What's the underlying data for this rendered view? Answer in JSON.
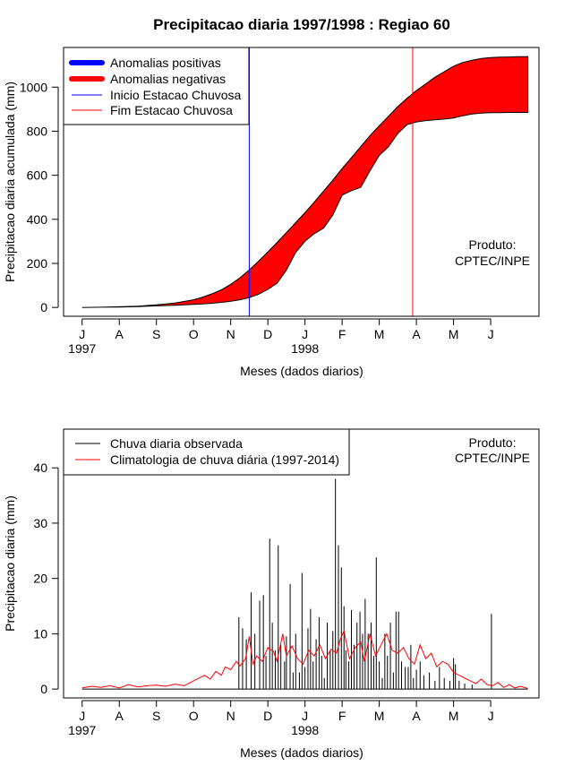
{
  "chart_data": [
    {
      "type": "area",
      "title": "Precipitacao diaria 1997/1998 : Regiao 60",
      "xlabel": "Meses (dados diarios)",
      "ylabel": "Precipitacao diaria acumulada (mm)",
      "ylim": [
        -40,
        1180
      ],
      "yticks": [
        0,
        200,
        400,
        600,
        800,
        1000
      ],
      "xlim": [
        -0.5,
        12.3
      ],
      "month_ticks": [
        "J",
        "A",
        "S",
        "O",
        "N",
        "D",
        "J",
        "F",
        "M",
        "A",
        "M",
        "J"
      ],
      "year_labels": [
        {
          "label": "1997",
          "month_index": 0
        },
        {
          "label": "1998",
          "month_index": 6
        }
      ],
      "legend": {
        "position": "top-left",
        "entries": [
          {
            "label": "Anomalias positivas",
            "color": "#0000ff",
            "style": "thick"
          },
          {
            "label": "Anomalias negativas",
            "color": "#ff0000",
            "style": "thick"
          },
          {
            "label": "Inicio Estacao Chuvosa",
            "color": "#0000ff",
            "style": "thin"
          },
          {
            "label": "Fim Estacao Chuvosa",
            "color": "#ff0000",
            "style": "thin"
          }
        ]
      },
      "annotation": [
        "Produto:",
        "CPTEC/INPE"
      ],
      "rainy_season_start_month": 4.5,
      "rainy_season_end_month": 8.9,
      "climatology_cumulative": {
        "x": [
          0,
          0.5,
          1,
          1.5,
          2,
          2.5,
          3,
          3.25,
          3.5,
          3.75,
          4,
          4.25,
          4.5,
          4.75,
          5,
          5.25,
          5.5,
          5.75,
          6,
          6.25,
          6.5,
          6.75,
          7,
          7.25,
          7.5,
          7.75,
          8,
          8.25,
          8.5,
          8.75,
          9,
          9.25,
          9.5,
          9.75,
          10,
          10.25,
          10.5,
          10.75,
          11,
          11.25,
          11.5,
          11.75,
          12
        ],
        "values": [
          0,
          1,
          3,
          6,
          12,
          20,
          35,
          47,
          62,
          80,
          105,
          135,
          170,
          210,
          252,
          295,
          340,
          385,
          430,
          478,
          528,
          578,
          630,
          680,
          730,
          780,
          825,
          868,
          912,
          950,
          985,
          1015,
          1045,
          1070,
          1095,
          1112,
          1122,
          1130,
          1134,
          1136,
          1137,
          1138,
          1138
        ]
      },
      "observed_cumulative": {
        "x": [
          0,
          0.5,
          1,
          1.5,
          2,
          2.5,
          3,
          3.25,
          3.5,
          3.75,
          4,
          4.25,
          4.5,
          4.75,
          5,
          5.25,
          5.5,
          5.75,
          6,
          6.25,
          6.5,
          6.75,
          7,
          7.25,
          7.5,
          7.75,
          8,
          8.25,
          8.5,
          8.75,
          9,
          9.25,
          9.5,
          9.75,
          10,
          10.25,
          10.5,
          10.75,
          11,
          11.25,
          11.5,
          11.75,
          12
        ],
        "values": [
          0,
          1,
          2,
          4,
          7,
          10,
          14,
          16,
          19,
          23,
          28,
          35,
          45,
          60,
          82,
          110,
          170,
          250,
          300,
          335,
          360,
          420,
          510,
          530,
          545,
          620,
          690,
          730,
          790,
          830,
          842,
          848,
          852,
          855,
          860,
          870,
          878,
          882,
          884,
          884,
          885,
          885,
          885
        ]
      }
    },
    {
      "type": "bar",
      "xlabel": "Meses (dados diarios)",
      "ylabel": "Precipitacao diaria (mm)",
      "ylim": [
        -1.6,
        47
      ],
      "yticks": [
        0,
        10,
        20,
        30,
        40
      ],
      "xlim": [
        -0.5,
        12.3
      ],
      "month_ticks": [
        "J",
        "A",
        "S",
        "O",
        "N",
        "D",
        "J",
        "F",
        "M",
        "A",
        "M",
        "J"
      ],
      "year_labels": [
        {
          "label": "1997",
          "month_index": 0
        },
        {
          "label": "1998",
          "month_index": 6
        }
      ],
      "legend": {
        "position": "top-left",
        "entries": [
          {
            "label": "Chuva diaria observada",
            "color": "#000000"
          },
          {
            "label": "Climatologia de chuva diária (1997-2014)",
            "color": "#ff0000"
          }
        ]
      },
      "annotation": [
        "Produto:",
        "CPTEC/INPE"
      ],
      "observed_daily": {
        "x": [
          4.22,
          4.32,
          4.42,
          4.55,
          4.65,
          4.78,
          4.88,
          4.95,
          5.05,
          5.12,
          5.2,
          5.28,
          5.35,
          5.45,
          5.5,
          5.6,
          5.68,
          5.75,
          5.85,
          5.92,
          6.0,
          6.08,
          6.15,
          6.22,
          6.3,
          6.38,
          6.45,
          6.52,
          6.6,
          6.68,
          6.75,
          6.82,
          6.9,
          6.98,
          7.05,
          7.1,
          7.18,
          7.25,
          7.32,
          7.4,
          7.48,
          7.55,
          7.62,
          7.7,
          7.78,
          7.85,
          7.92,
          8.0,
          8.08,
          8.15,
          8.22,
          8.3,
          8.38,
          8.45,
          8.52,
          8.6,
          8.7,
          8.78,
          8.85,
          8.92,
          9.0,
          9.1,
          9.2,
          9.35,
          9.5,
          9.62,
          9.75,
          9.9,
          10.0,
          10.05,
          10.15,
          10.3,
          10.5,
          11.02
        ],
        "values": [
          13,
          11,
          9,
          17.5,
          10,
          16,
          17,
          6,
          27.2,
          12,
          7,
          26,
          8,
          5,
          9.5,
          19,
          3,
          10,
          3,
          21,
          4,
          11,
          14.5,
          5,
          9,
          13,
          6,
          2,
          12,
          7,
          10.5,
          38,
          26,
          22,
          15,
          7,
          5,
          14.3,
          8,
          12,
          14,
          10,
          16.3,
          10,
          12,
          6,
          23.8,
          5,
          2,
          10,
          6,
          12,
          3,
          14,
          14,
          5,
          4,
          4,
          8,
          2,
          3.5,
          5,
          2.5,
          3,
          1.5,
          4,
          2,
          1.5,
          5.6,
          4.5,
          1.5,
          1,
          0.8,
          13.6
        ]
      },
      "climatology_daily": {
        "x": [
          0,
          0.25,
          0.5,
          0.75,
          1,
          1.25,
          1.5,
          1.75,
          2,
          2.25,
          2.5,
          2.75,
          3,
          3.15,
          3.3,
          3.45,
          3.6,
          3.75,
          3.85,
          4.0,
          4.15,
          4.25,
          4.4,
          4.5,
          4.6,
          4.7,
          4.85,
          5.0,
          5.15,
          5.25,
          5.4,
          5.5,
          5.65,
          5.8,
          5.95,
          6.1,
          6.25,
          6.4,
          6.55,
          6.7,
          6.85,
          6.95,
          7.05,
          7.2,
          7.35,
          7.5,
          7.6,
          7.75,
          7.9,
          8.05,
          8.2,
          8.35,
          8.5,
          8.65,
          8.8,
          8.95,
          9.1,
          9.25,
          9.4,
          9.55,
          9.7,
          9.85,
          10.0,
          10.15,
          10.3,
          10.45,
          10.6,
          10.75,
          10.9,
          11.05,
          11.2,
          11.35,
          11.5,
          11.65,
          11.8,
          12.0
        ],
        "values": [
          0.2,
          0.5,
          0.3,
          0.6,
          0.2,
          0.8,
          0.4,
          0.6,
          0.7,
          0.5,
          0.9,
          0.6,
          1.5,
          2.0,
          2.5,
          1.8,
          3.2,
          2.5,
          4.0,
          3.5,
          5.0,
          4.2,
          5.5,
          9.5,
          4.5,
          6.0,
          5.0,
          7.5,
          6.8,
          5.0,
          10.0,
          6.0,
          7.8,
          5.5,
          4.5,
          7.0,
          6.0,
          8.0,
          5.5,
          7.2,
          6.5,
          9.0,
          10.5,
          5.5,
          7.5,
          8.5,
          5.0,
          10.0,
          6.0,
          8.0,
          10.0,
          7.0,
          6.5,
          7.5,
          5.5,
          4.5,
          8.0,
          5.5,
          6.5,
          4.0,
          5.0,
          4.5,
          3.0,
          2.5,
          2.0,
          1.5,
          1.0,
          1.8,
          0.8,
          0.6,
          1.2,
          0.3,
          0.8,
          0.2,
          0.5,
          0.1
        ]
      }
    }
  ]
}
